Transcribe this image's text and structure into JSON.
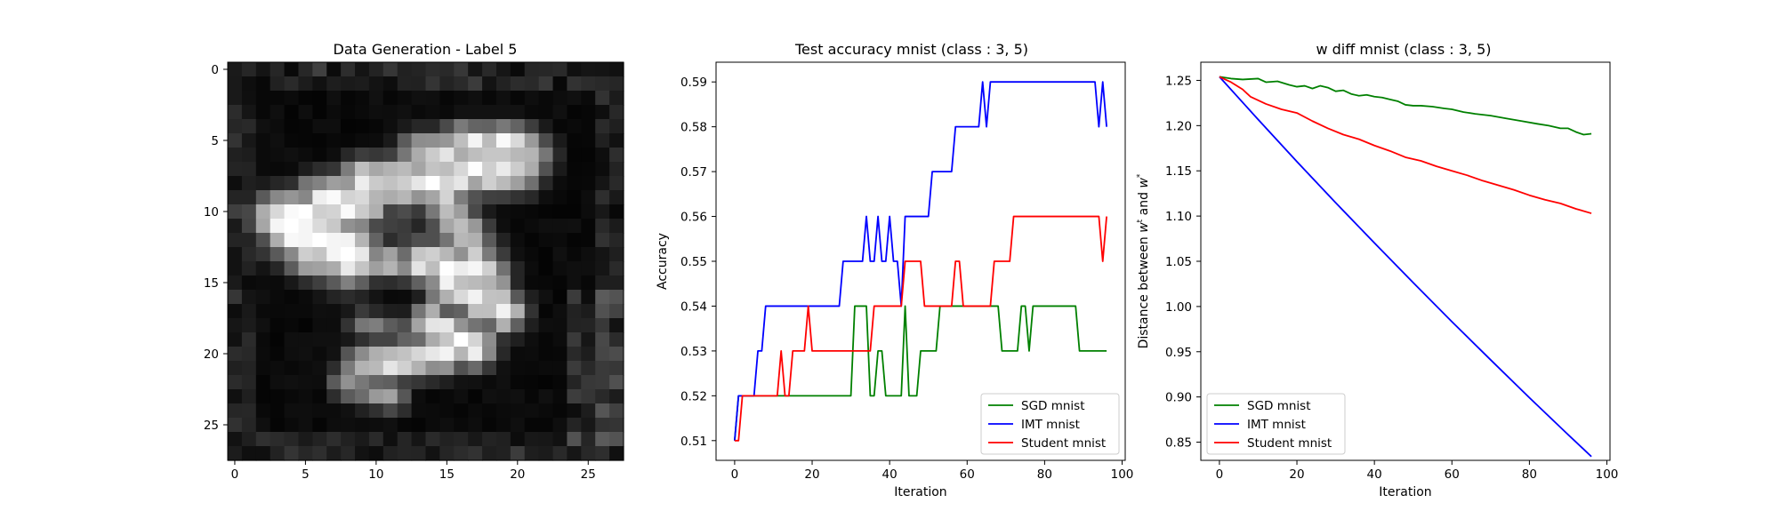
{
  "chart_data": [
    {
      "type": "heatmap",
      "title": "Data Generation - Label 5",
      "xticks": [
        "0",
        "5",
        "10",
        "15",
        "20",
        "25"
      ],
      "yticks": [
        "0",
        "5",
        "10",
        "15",
        "20",
        "25"
      ],
      "xlim": [
        -0.5,
        27.5
      ],
      "ylim": [
        27.5,
        -0.5
      ],
      "colormap": "gray",
      "grid": false,
      "strokes": [
        {
          "x0": 16,
          "y0": 5,
          "x1": 20,
          "y1": 5,
          "v": 0.85,
          "w": 0.9
        },
        {
          "x0": 13,
          "y0": 6,
          "x1": 21,
          "y1": 6,
          "v": 0.8,
          "w": 1.1
        },
        {
          "x0": 9,
          "y0": 8,
          "x1": 20,
          "y1": 7,
          "v": 0.9,
          "w": 1.2
        },
        {
          "x0": 6,
          "y0": 9,
          "x1": 14,
          "y1": 8,
          "v": 0.9,
          "w": 1.1
        },
        {
          "x0": 3,
          "y0": 10.5,
          "x1": 9,
          "y1": 9.5,
          "v": 0.9,
          "w": 1.3
        },
        {
          "x0": 4,
          "y0": 11,
          "x1": 8,
          "y1": 13,
          "v": 1.0,
          "w": 1.6
        },
        {
          "x0": 5,
          "y0": 13.5,
          "x1": 11,
          "y1": 13.5,
          "v": 0.7,
          "w": 0.9
        },
        {
          "x0": 14,
          "y0": 8,
          "x1": 17,
          "y1": 13,
          "v": 0.75,
          "w": 1.2
        },
        {
          "x0": 13,
          "y0": 13.5,
          "x1": 18,
          "y1": 14.5,
          "v": 0.85,
          "w": 1.1
        },
        {
          "x0": 15,
          "y0": 15,
          "x1": 19,
          "y1": 17,
          "v": 0.95,
          "w": 1.1
        },
        {
          "x0": 14,
          "y0": 18,
          "x1": 17,
          "y1": 19.5,
          "v": 0.9,
          "w": 1.1
        },
        {
          "x0": 9,
          "y0": 21,
          "x1": 15,
          "y1": 20,
          "v": 0.85,
          "w": 1.0
        },
        {
          "x0": 8,
          "y0": 22,
          "x1": 11,
          "y1": 23,
          "v": 0.6,
          "w": 0.9
        },
        {
          "x0": 9,
          "y0": 18,
          "x1": 12,
          "y1": 18.5,
          "v": 0.45,
          "w": 0.8
        },
        {
          "x0": 11,
          "y0": 10.5,
          "x1": 13,
          "y1": 12.5,
          "v": 0.3,
          "w": 0.9
        }
      ]
    },
    {
      "type": "line",
      "title": "Test accuracy mnist (class : 3, 5)",
      "xlabel": "Iteration",
      "ylabel": "Accuracy",
      "xlim": [
        -4.8,
        100.8
      ],
      "ylim": [
        0.5056,
        0.5944
      ],
      "xticks": [
        0,
        20,
        40,
        60,
        80,
        100
      ],
      "yticks": [
        0.51,
        0.52,
        0.53,
        0.54,
        0.55,
        0.56,
        0.57,
        0.58,
        0.59
      ],
      "legend_position": "lower-right",
      "series": [
        {
          "name": "SGD mnist",
          "color": "#008000",
          "points": [
            [
              0,
              0.51
            ],
            [
              1,
              0.52
            ],
            [
              30,
              0.52
            ],
            [
              31,
              0.54
            ],
            [
              34,
              0.54
            ],
            [
              35,
              0.52
            ],
            [
              36,
              0.52
            ],
            [
              37,
              0.53
            ],
            [
              38,
              0.53
            ],
            [
              39,
              0.52
            ],
            [
              43,
              0.52
            ],
            [
              44,
              0.54
            ],
            [
              45,
              0.52
            ],
            [
              47,
              0.52
            ],
            [
              48,
              0.53
            ],
            [
              52,
              0.53
            ],
            [
              53,
              0.54
            ],
            [
              68,
              0.54
            ],
            [
              69,
              0.53
            ],
            [
              73,
              0.53
            ],
            [
              74,
              0.54
            ],
            [
              75,
              0.54
            ],
            [
              76,
              0.53
            ],
            [
              77,
              0.54
            ],
            [
              88,
              0.54
            ],
            [
              89,
              0.53
            ],
            [
              96,
              0.53
            ]
          ]
        },
        {
          "name": "IMT mnist",
          "color": "#0000ff",
          "points": [
            [
              0,
              0.51
            ],
            [
              1,
              0.52
            ],
            [
              5,
              0.52
            ],
            [
              6,
              0.53
            ],
            [
              7,
              0.53
            ],
            [
              8,
              0.54
            ],
            [
              27,
              0.54
            ],
            [
              28,
              0.55
            ],
            [
              33,
              0.55
            ],
            [
              34,
              0.56
            ],
            [
              35,
              0.55
            ],
            [
              36,
              0.55
            ],
            [
              37,
              0.56
            ],
            [
              38,
              0.55
            ],
            [
              39,
              0.55
            ],
            [
              40,
              0.56
            ],
            [
              41,
              0.55
            ],
            [
              42,
              0.55
            ],
            [
              43,
              0.54
            ],
            [
              44,
              0.56
            ],
            [
              50,
              0.56
            ],
            [
              51,
              0.57
            ],
            [
              56,
              0.57
            ],
            [
              57,
              0.58
            ],
            [
              63,
              0.58
            ],
            [
              64,
              0.59
            ],
            [
              65,
              0.58
            ],
            [
              66,
              0.59
            ],
            [
              93,
              0.59
            ],
            [
              94,
              0.58
            ],
            [
              95,
              0.59
            ],
            [
              96,
              0.58
            ]
          ]
        },
        {
          "name": "Student mnist",
          "color": "#ff0000",
          "points": [
            [
              0,
              0.51
            ],
            [
              1,
              0.51
            ],
            [
              2,
              0.52
            ],
            [
              11,
              0.52
            ],
            [
              12,
              0.53
            ],
            [
              13,
              0.52
            ],
            [
              14,
              0.52
            ],
            [
              15,
              0.53
            ],
            [
              18,
              0.53
            ],
            [
              19,
              0.54
            ],
            [
              20,
              0.53
            ],
            [
              35,
              0.53
            ],
            [
              36,
              0.54
            ],
            [
              43,
              0.54
            ],
            [
              44,
              0.55
            ],
            [
              48,
              0.55
            ],
            [
              49,
              0.54
            ],
            [
              56,
              0.54
            ],
            [
              57,
              0.55
            ],
            [
              58,
              0.55
            ],
            [
              59,
              0.54
            ],
            [
              66,
              0.54
            ],
            [
              67,
              0.55
            ],
            [
              71,
              0.55
            ],
            [
              72,
              0.56
            ],
            [
              94,
              0.56
            ],
            [
              95,
              0.55
            ],
            [
              96,
              0.56
            ]
          ]
        }
      ]
    },
    {
      "type": "line",
      "title": "w diff mnist (class : 3, 5)",
      "xlabel": "Iteration",
      "ylabel_parts": [
        "Distance between ",
        "w",
        "t",
        " and ",
        "w",
        "*"
      ],
      "xlim": [
        -4.8,
        100.8
      ],
      "ylim": [
        0.8299,
        1.2701
      ],
      "xticks": [
        0,
        20,
        40,
        60,
        80,
        100
      ],
      "yticks": [
        0.85,
        0.9,
        0.95,
        1.0,
        1.05,
        1.1,
        1.15,
        1.2,
        1.25
      ],
      "legend_position": "lower-left",
      "series": [
        {
          "name": "SGD mnist",
          "color": "#008000",
          "points": [
            [
              0,
              1.254
            ],
            [
              3,
              1.252
            ],
            [
              6,
              1.251
            ],
            [
              10,
              1.252
            ],
            [
              12,
              1.248
            ],
            [
              15,
              1.249
            ],
            [
              18,
              1.245
            ],
            [
              20,
              1.243
            ],
            [
              22,
              1.244
            ],
            [
              24,
              1.241
            ],
            [
              26,
              1.244
            ],
            [
              28,
              1.242
            ],
            [
              30,
              1.238
            ],
            [
              32,
              1.239
            ],
            [
              34,
              1.235
            ],
            [
              36,
              1.233
            ],
            [
              38,
              1.234
            ],
            [
              40,
              1.232
            ],
            [
              42,
              1.231
            ],
            [
              44,
              1.229
            ],
            [
              46,
              1.227
            ],
            [
              48,
              1.223
            ],
            [
              50,
              1.222
            ],
            [
              52,
              1.222
            ],
            [
              55,
              1.221
            ],
            [
              58,
              1.219
            ],
            [
              60,
              1.218
            ],
            [
              63,
              1.215
            ],
            [
              66,
              1.213
            ],
            [
              70,
              1.211
            ],
            [
              74,
              1.208
            ],
            [
              78,
              1.205
            ],
            [
              82,
              1.202
            ],
            [
              85,
              1.2
            ],
            [
              88,
              1.197
            ],
            [
              90,
              1.197
            ],
            [
              92,
              1.193
            ],
            [
              94,
              1.19
            ],
            [
              96,
              1.191
            ]
          ]
        },
        {
          "name": "IMT mnist",
          "color": "#0000ff",
          "points": [
            [
              0,
              1.254
            ],
            [
              10,
              1.2067
            ],
            [
              20,
              1.1602
            ],
            [
              30,
              1.1147
            ],
            [
              40,
              1.0703
            ],
            [
              50,
              1.0264
            ],
            [
              60,
              0.9832
            ],
            [
              70,
              0.941
            ],
            [
              80,
              0.8992
            ],
            [
              90,
              0.8583
            ],
            [
              92,
              0.8502
            ],
            [
              96,
              0.8341
            ]
          ]
        },
        {
          "name": "Student mnist",
          "color": "#ff0000",
          "points": [
            [
              0,
              1.254
            ],
            [
              3,
              1.248
            ],
            [
              6,
              1.24
            ],
            [
              8,
              1.232
            ],
            [
              12,
              1.224
            ],
            [
              16,
              1.218
            ],
            [
              20,
              1.214
            ],
            [
              24,
              1.205
            ],
            [
              28,
              1.197
            ],
            [
              32,
              1.19
            ],
            [
              36,
              1.185
            ],
            [
              40,
              1.178
            ],
            [
              44,
              1.172
            ],
            [
              48,
              1.165
            ],
            [
              52,
              1.161
            ],
            [
              56,
              1.155
            ],
            [
              60,
              1.15
            ],
            [
              64,
              1.145
            ],
            [
              68,
              1.139
            ],
            [
              72,
              1.134
            ],
            [
              76,
              1.129
            ],
            [
              80,
              1.123
            ],
            [
              84,
              1.118
            ],
            [
              88,
              1.114
            ],
            [
              92,
              1.108
            ],
            [
              96,
              1.103
            ]
          ]
        }
      ]
    }
  ]
}
